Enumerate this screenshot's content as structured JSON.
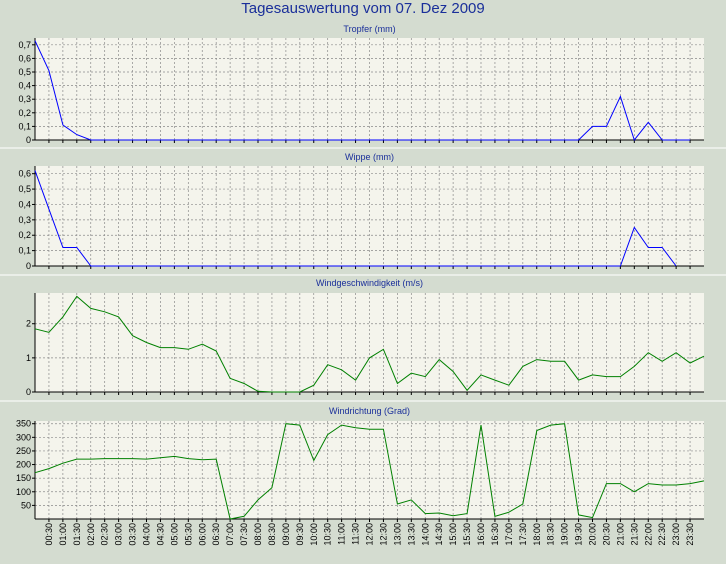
{
  "title": "Tagesauswertung vom 07. Dez 2009",
  "colors": {
    "background": "#d4dcd0",
    "plot_background": "#f4f4ec",
    "title_text": "#1a2f9a",
    "grid": "#8a8a8a",
    "axis": "#000000",
    "rain_series": "#0000ff",
    "wind_series": "#008000",
    "separator": "#ffffff"
  },
  "x_tick_labels": [
    "00:30",
    "01:00",
    "01:30",
    "02:00",
    "02:30",
    "03:00",
    "03:30",
    "04:00",
    "04:30",
    "05:00",
    "05:30",
    "06:00",
    "06:30",
    "07:00",
    "07:30",
    "08:00",
    "08:30",
    "09:00",
    "09:30",
    "10:00",
    "10:30",
    "11:00",
    "11:30",
    "12:00",
    "12:30",
    "13:00",
    "13:30",
    "14:00",
    "14:30",
    "15:00",
    "15:30",
    "16:00",
    "16:30",
    "17:00",
    "17:30",
    "18:00",
    "18:30",
    "19:00",
    "19:30",
    "20:00",
    "20:30",
    "21:00",
    "21:30",
    "22:00",
    "22:30",
    "23:00",
    "23:30"
  ],
  "chart_data": [
    {
      "type": "line",
      "title": "Tropfer (mm)",
      "color": "#0000ff",
      "ylim": [
        0,
        0.75
      ],
      "yticks": [
        0,
        0.1,
        0.2,
        0.3,
        0.4,
        0.5,
        0.6,
        0.7
      ],
      "ytick_labels": [
        "0",
        "0,1",
        "0,2",
        "0,3",
        "0,4",
        "0,5",
        "0,6",
        "0,7"
      ],
      "grid": true,
      "x": [
        "00:00",
        "00:30",
        "01:00",
        "01:30",
        "02:00",
        "19:30",
        "20:00",
        "20:30",
        "21:00",
        "21:30",
        "22:00",
        "22:30",
        "23:00",
        "23:30"
      ],
      "values": [
        0.73,
        0.51,
        0.11,
        0.04,
        0.0,
        0.0,
        0.1,
        0.1,
        0.32,
        0.0,
        0.13,
        0.0,
        0.0,
        0.0
      ]
    },
    {
      "type": "line",
      "title": "Wippe (mm)",
      "color": "#0000ff",
      "ylim": [
        0,
        0.65
      ],
      "yticks": [
        0,
        0.1,
        0.2,
        0.3,
        0.4,
        0.5,
        0.6
      ],
      "ytick_labels": [
        "0",
        "0,1",
        "0,2",
        "0,3",
        "0,4",
        "0,5",
        "0,6"
      ],
      "grid": true,
      "x": [
        "00:00",
        "00:30",
        "01:00",
        "01:30",
        "02:00",
        "21:00",
        "21:30",
        "22:00",
        "22:30",
        "23:00"
      ],
      "values": [
        0.62,
        0.37,
        0.12,
        0.12,
        0.0,
        0.0,
        0.25,
        0.12,
        0.12,
        0.0
      ]
    },
    {
      "type": "line",
      "title": "Windgeschwindigkeit (m/s)",
      "color": "#008000",
      "ylim": [
        0,
        2.9
      ],
      "yticks": [
        0,
        1,
        2
      ],
      "ytick_labels": [
        "0",
        "1",
        "2"
      ],
      "grid": true,
      "x": [
        "00:00",
        "00:30",
        "01:00",
        "01:30",
        "02:00",
        "02:30",
        "03:00",
        "03:30",
        "04:00",
        "04:30",
        "05:00",
        "05:30",
        "06:00",
        "06:30",
        "07:00",
        "07:30",
        "08:00",
        "08:30",
        "09:00",
        "09:30",
        "10:00",
        "10:30",
        "11:00",
        "11:30",
        "12:00",
        "12:30",
        "13:00",
        "13:30",
        "14:00",
        "14:30",
        "15:00",
        "15:30",
        "16:00",
        "16:30",
        "17:00",
        "17:30",
        "18:00",
        "18:30",
        "19:00",
        "19:30",
        "20:00",
        "20:30",
        "21:00",
        "21:30",
        "22:00",
        "22:30",
        "23:00",
        "23:30",
        "24:00"
      ],
      "values": [
        1.85,
        1.75,
        2.2,
        2.8,
        2.45,
        2.35,
        2.2,
        1.65,
        1.45,
        1.3,
        1.3,
        1.25,
        1.4,
        1.2,
        0.4,
        0.25,
        0.02,
        0.0,
        0.0,
        0.0,
        0.2,
        0.8,
        0.65,
        0.35,
        1.0,
        1.25,
        0.25,
        0.55,
        0.45,
        0.95,
        0.6,
        0.05,
        0.5,
        0.35,
        0.2,
        0.75,
        0.95,
        0.9,
        0.9,
        0.35,
        0.5,
        0.45,
        0.45,
        0.75,
        1.15,
        0.9,
        1.15,
        0.85,
        1.05
      ]
    },
    {
      "type": "line",
      "title": "Windrichtung (Grad)",
      "color": "#008000",
      "ylim": [
        0,
        360
      ],
      "yticks": [
        50,
        100,
        150,
        200,
        250,
        300,
        350
      ],
      "ytick_labels": [
        "50",
        "100",
        "150",
        "200",
        "250",
        "300",
        "350"
      ],
      "grid": true,
      "x": [
        "00:00",
        "00:30",
        "01:00",
        "01:30",
        "02:00",
        "02:30",
        "03:00",
        "03:30",
        "04:00",
        "04:30",
        "05:00",
        "05:30",
        "06:00",
        "06:30",
        "07:00",
        "07:30",
        "08:00",
        "08:30",
        "09:00",
        "09:30",
        "10:00",
        "10:30",
        "11:00",
        "11:30",
        "12:00",
        "12:30",
        "13:00",
        "13:30",
        "14:00",
        "14:30",
        "15:00",
        "15:30",
        "16:00",
        "16:30",
        "17:00",
        "17:30",
        "18:00",
        "18:30",
        "19:00",
        "19:30",
        "20:00",
        "20:30",
        "21:00",
        "21:30",
        "22:00",
        "22:30",
        "23:00",
        "23:30",
        "24:00"
      ],
      "values": [
        170,
        185,
        205,
        220,
        220,
        222,
        222,
        222,
        220,
        225,
        230,
        222,
        218,
        220,
        0,
        10,
        70,
        115,
        350,
        345,
        215,
        310,
        345,
        335,
        330,
        330,
        55,
        70,
        20,
        22,
        12,
        20,
        345,
        10,
        25,
        55,
        325,
        345,
        350,
        15,
        5,
        130,
        130,
        100,
        130,
        125,
        125,
        130,
        140
      ]
    }
  ]
}
